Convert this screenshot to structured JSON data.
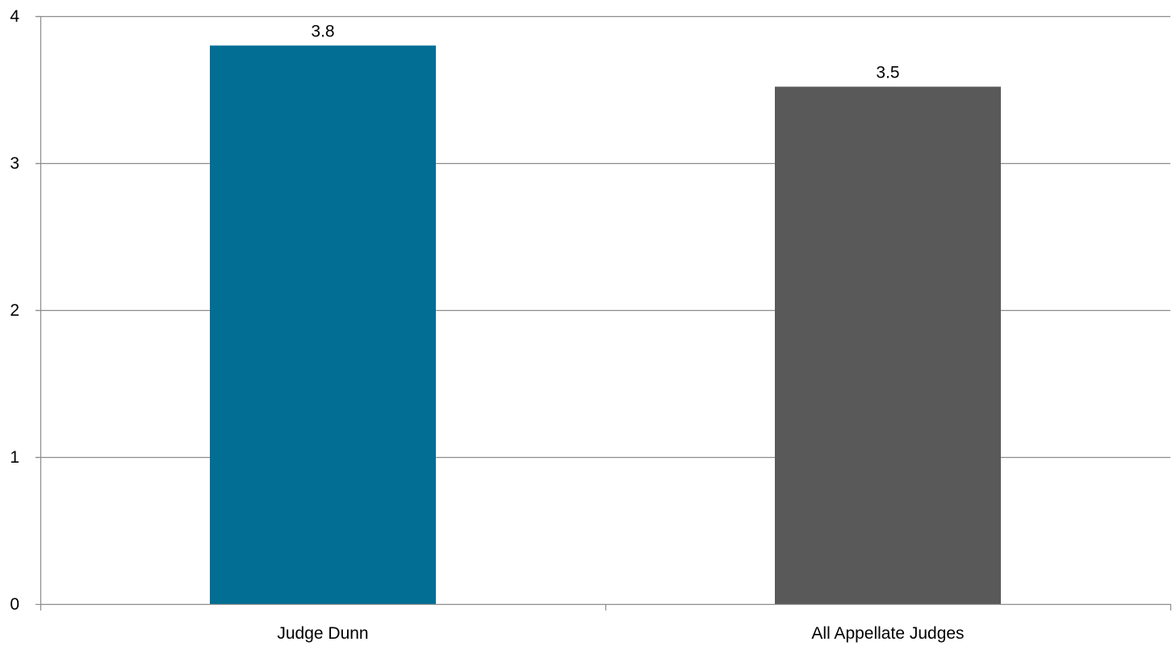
{
  "chart_data": {
    "type": "bar",
    "categories": [
      "Judge Dunn",
      "All Appellate Judges"
    ],
    "values": [
      3.8,
      3.52
    ],
    "data_labels": [
      "3.8",
      "3.5"
    ],
    "bar_colors": [
      "#026e94",
      "#595959"
    ],
    "ylim": [
      0,
      4
    ],
    "yticks": [
      0,
      1,
      2,
      3,
      4
    ],
    "ytick_labels": [
      "0",
      "1",
      "2",
      "3",
      "4"
    ],
    "grid": true,
    "grid_color": "#8c8c8c",
    "axis_color": "#8c8c8c",
    "legend": "none"
  }
}
